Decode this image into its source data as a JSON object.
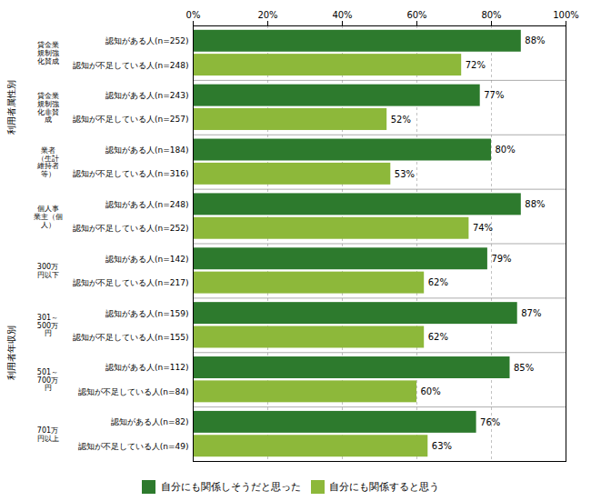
{
  "chart_data": {
    "type": "bar",
    "orientation": "horizontal",
    "categories": [
      "貸金業\n規制強\n化賛成",
      "貸金業\n規制強\n化非賛\n成",
      "業者\n（生計\n維持者\n等）",
      "個人事\n業主（個\n人）",
      "300万\n円以下",
      "301～\n500万\n円",
      "501～\n700万\n円",
      "701万\n円以上"
    ],
    "series": [
      {
        "name": "自分にも関係しそうだと思った",
        "color": "#2d7a2d",
        "row_labels": [
          "認知がある人(n=252)",
          "認知がある人(n=243)",
          "認知がある人(n=184)",
          "認知がある人(n=248)",
          "認知がある人(n=142)",
          "認知がある人(n=159)",
          "認知がある人(n=112)",
          "認知がある人(n=82)"
        ],
        "values": [
          88,
          77,
          80,
          88,
          79,
          87,
          85,
          76
        ],
        "value_labels": [
          "88%",
          "77%",
          "80%",
          "88%",
          "79%",
          "87%",
          "85%",
          "76%"
        ]
      },
      {
        "name": "自分にも関係すると思う",
        "color": "#8db83a",
        "row_labels": [
          "認知が不足している人(n=248)",
          "認知が不足している人(n=257)",
          "認知が不足している人(n=316)",
          "認知が不足している人(n=252)",
          "認知が不足している人(n=217)",
          "認知が不足している人(n=155)",
          "認知が不足している人(n=84)",
          "認知が不足している人(n=49)"
        ],
        "values": [
          72,
          52,
          53,
          74,
          62,
          62,
          60,
          63
        ],
        "value_labels": [
          "72%",
          "52%",
          "53%",
          "74%",
          "62%",
          "62%",
          "60%",
          "63%"
        ]
      }
    ],
    "category_labels": [
      {
        "text": "利用者属性別",
        "from": 0,
        "to": 2
      },
      {
        "text": "利用者年収別",
        "from": 4,
        "to": 7
      }
    ],
    "xlim": [
      0,
      100
    ],
    "xticks": [
      {
        "value": 0,
        "label": "0%"
      },
      {
        "value": 20,
        "label": "20%"
      },
      {
        "value": 40,
        "label": "40%"
      },
      {
        "value": 60,
        "label": "60%"
      },
      {
        "value": 80,
        "label": "80%"
      },
      {
        "value": 100,
        "label": "100%"
      }
    ],
    "grid": true,
    "legend": "bottom",
    "data_labels": true
  }
}
